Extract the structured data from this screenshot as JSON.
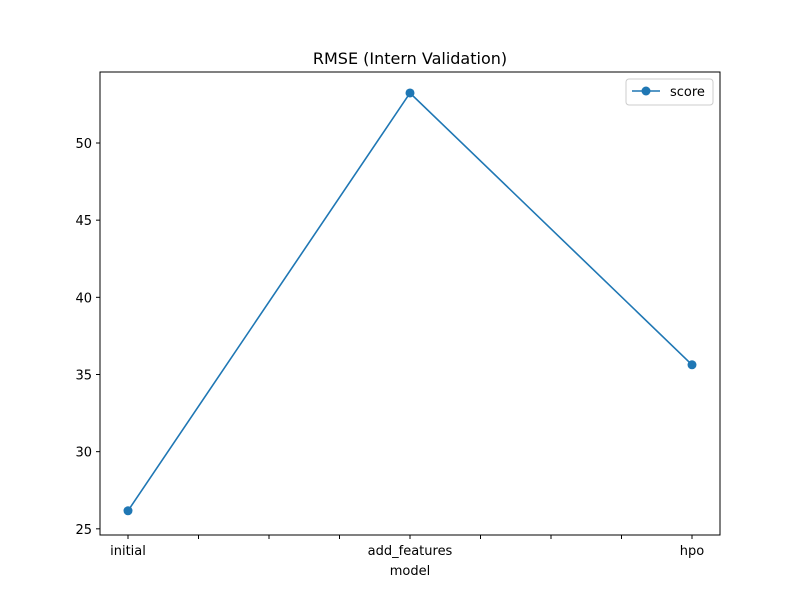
{
  "chart_data": {
    "type": "line",
    "title": "RMSE (Intern Validation)",
    "xlabel": "model",
    "ylabel": "",
    "categories": [
      "initial",
      "add_features",
      "hpo"
    ],
    "series": [
      {
        "name": "score",
        "values": [
          26.17,
          53.24,
          35.63
        ],
        "color": "#1f77b4",
        "marker": "circle"
      }
    ],
    "ylim": [
      24.6,
      54.6
    ],
    "yticks": [
      25,
      30,
      35,
      40,
      45,
      50
    ],
    "minor_x_ticks_between": 3,
    "grid": false,
    "legend_position": "top-right"
  }
}
